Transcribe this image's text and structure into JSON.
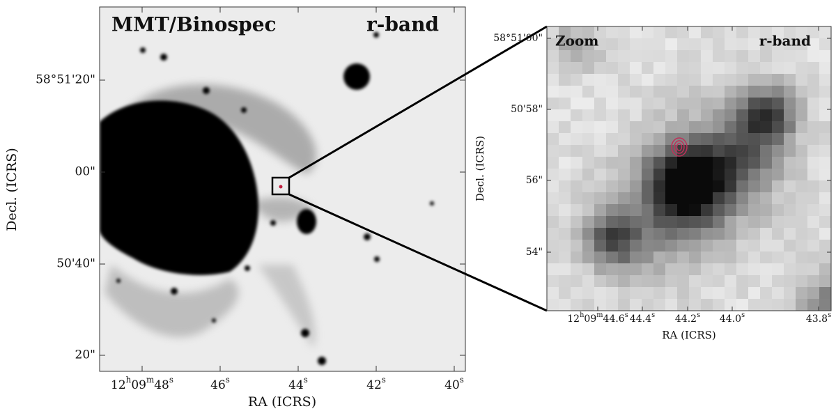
{
  "left_panel": {
    "label_left": "MMT/Binospec",
    "label_right": "r-band",
    "x_axis_label": "RA (ICRS)",
    "y_axis_label": "Decl. (ICRS)",
    "x_ticks": [
      [
        "12",
        "h",
        "09",
        "m",
        "48",
        "s"
      ],
      [
        "46",
        "s"
      ],
      [
        "44",
        "s"
      ],
      [
        "42",
        "s"
      ],
      [
        "40",
        "s"
      ]
    ],
    "y_ticks": [
      "58°51'20\"",
      "00\"",
      "50'40\"",
      "20\""
    ]
  },
  "right_panel": {
    "label_left": "Zoom",
    "label_right": "r-band",
    "x_axis_label": "RA (ICRS)",
    "y_axis_label": "Decl. (ICRS)",
    "x_ticks": [
      [
        "12",
        "h",
        "09",
        "m",
        "44.6",
        "s"
      ],
      [
        "44.4",
        "s"
      ],
      [
        "44.2",
        "s"
      ],
      [
        "44.0",
        "s"
      ],
      [
        "43.8",
        "s"
      ]
    ],
    "y_ticks": [
      "58°51'00\"",
      "50'58\"",
      "56\"",
      "54\""
    ]
  }
}
